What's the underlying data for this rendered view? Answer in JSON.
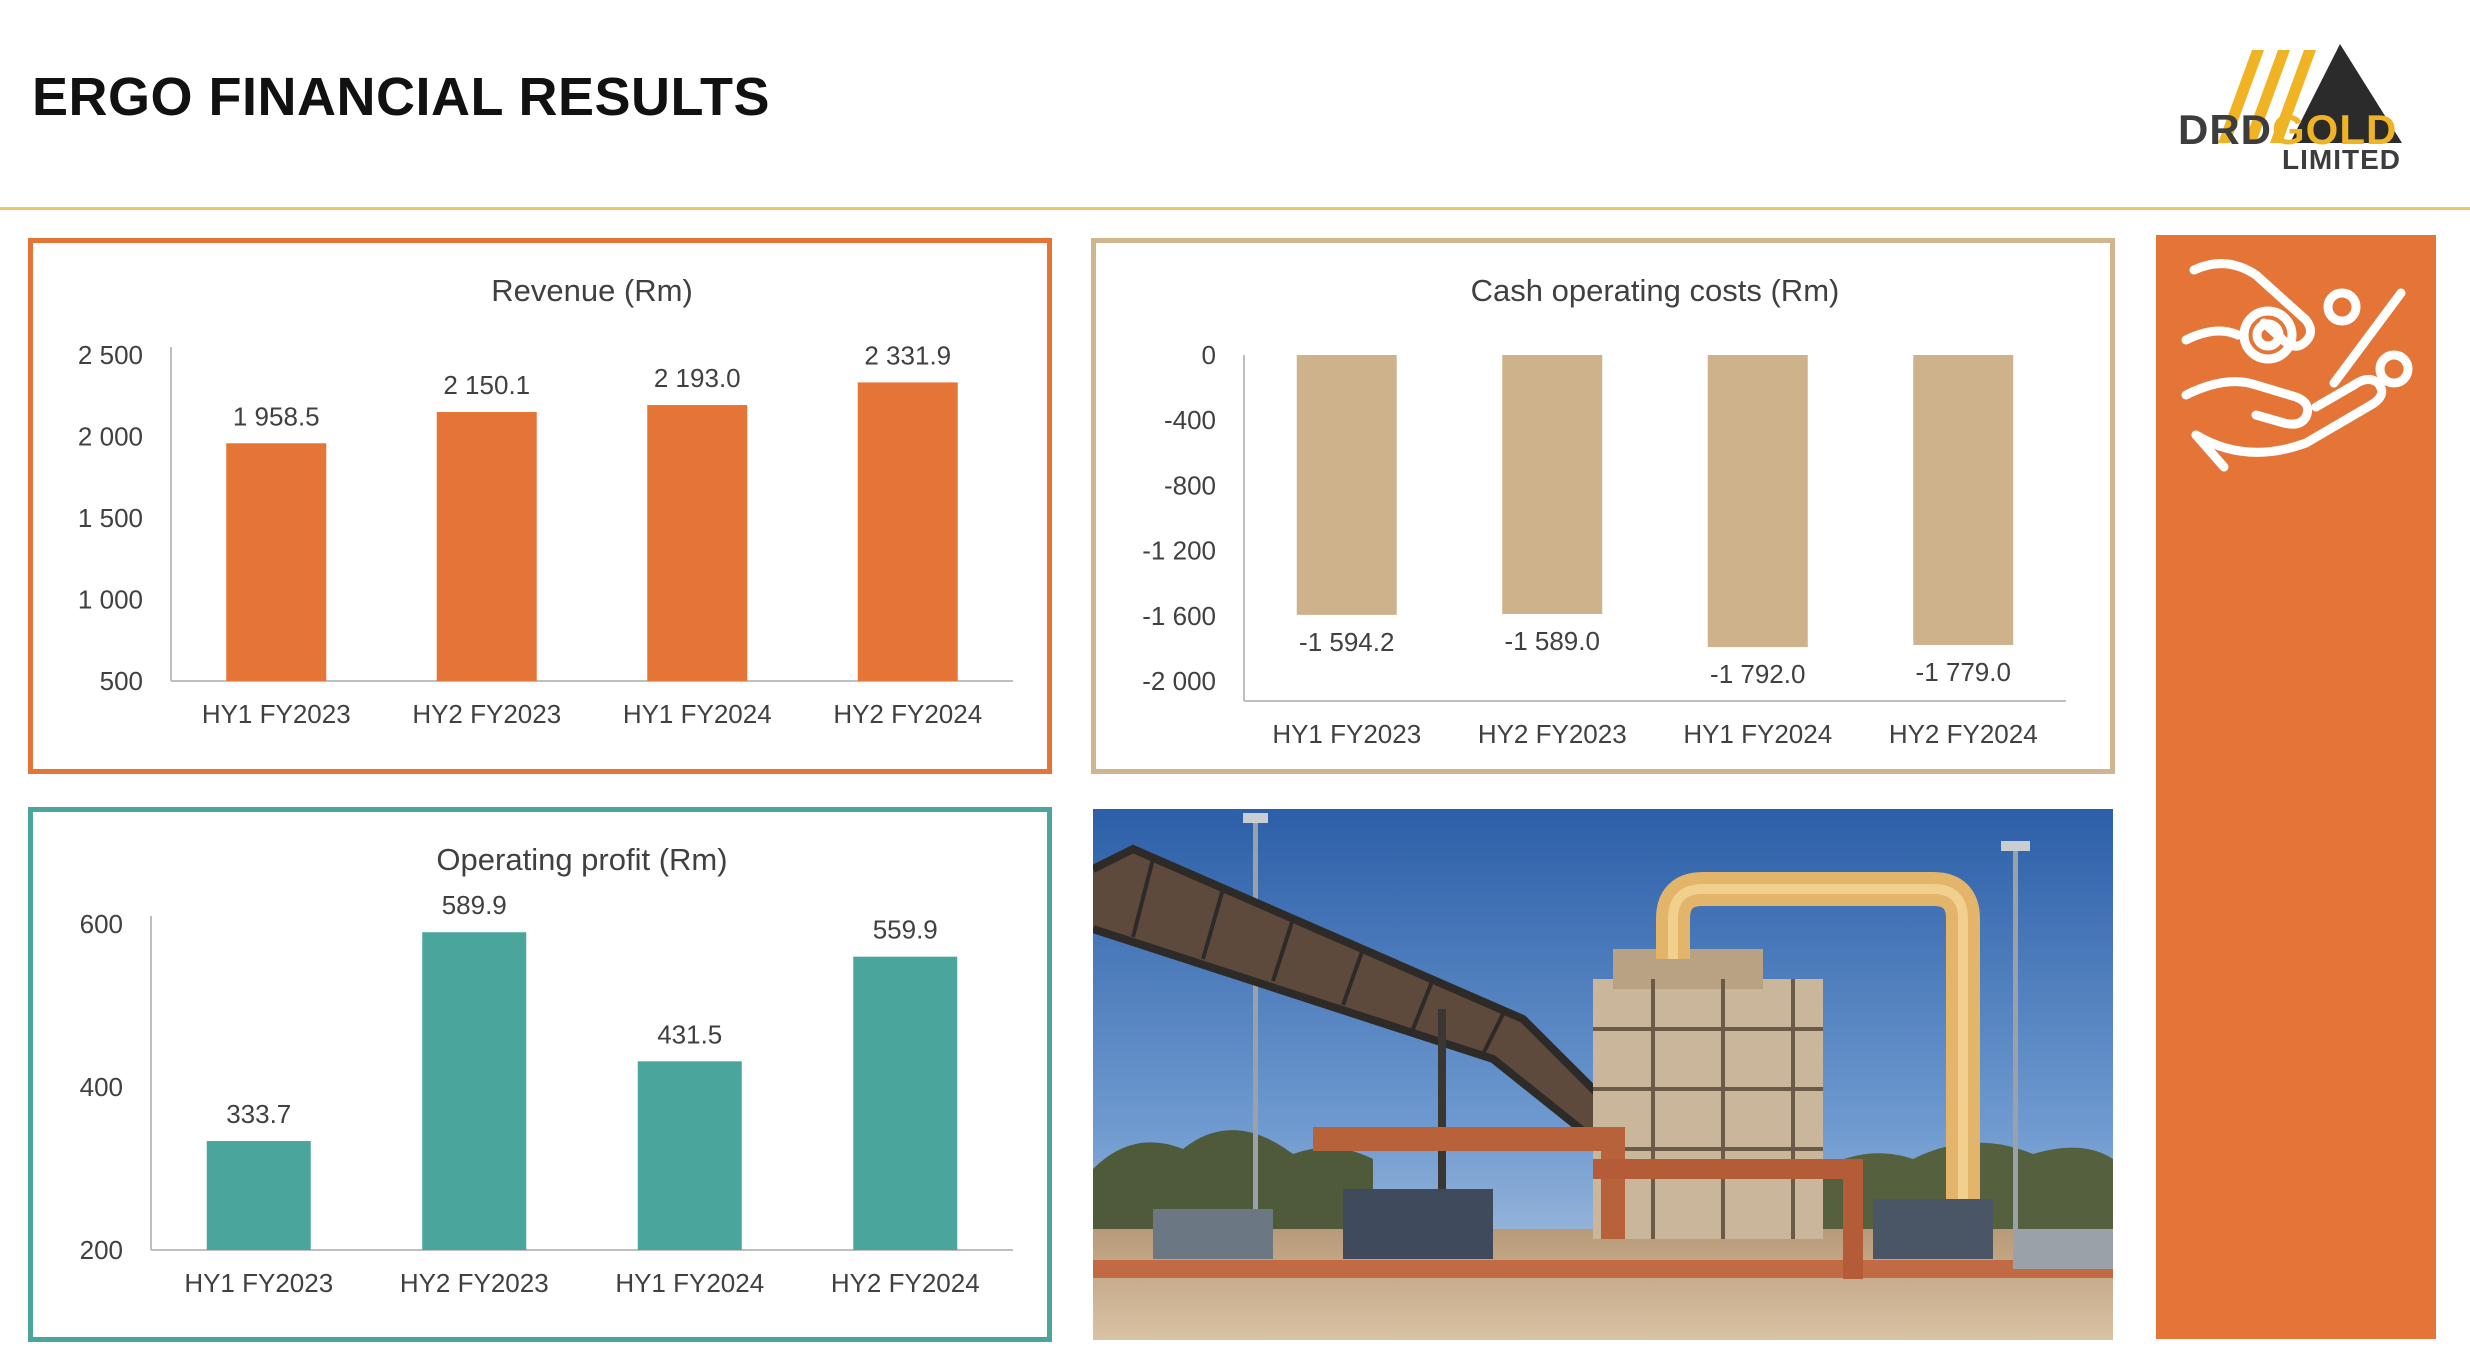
{
  "header": {
    "title": "ERGO FINANCIAL RESULTS",
    "logo_text_dark": "DRD",
    "logo_text_gold": "GOLD",
    "logo_sub": "LIMITED"
  },
  "colors": {
    "revenue": "#e57536",
    "costs": "#cdb28c",
    "profit": "#4aa59c",
    "sidebar": "#e57536",
    "header_rule": "#e8c96a"
  },
  "icons": {
    "sidebar": "hand-coin-percent-icon"
  },
  "chart_data": [
    {
      "id": "revenue",
      "type": "bar",
      "title": "Revenue (Rm)",
      "categories": [
        "HY1 FY2023",
        "HY2 FY2023",
        "HY1 FY2024",
        "HY2 FY2024"
      ],
      "values": [
        1958.5,
        2150.1,
        2193.0,
        2331.9
      ],
      "value_labels": [
        "1 958.5",
        "2 150.1",
        "2 193.0",
        "2 331.9"
      ],
      "ylim": [
        500,
        2500
      ],
      "yticks": [
        500,
        1000,
        1500,
        2000,
        2500
      ],
      "ytick_labels": [
        "500",
        "1 000",
        "1 500",
        "2 000",
        "2 500"
      ],
      "grid": false,
      "legend": "none"
    },
    {
      "id": "costs",
      "type": "bar",
      "title": "Cash operating costs (Rm)",
      "categories": [
        "HY1 FY2023",
        "HY2 FY2023",
        "HY1 FY2024",
        "HY2 FY2024"
      ],
      "values": [
        -1594.2,
        -1589.0,
        -1792.0,
        -1779.0
      ],
      "value_labels": [
        "-1 594.2",
        "-1 589.0",
        "-1 792.0",
        "-1 779.0"
      ],
      "ylim": [
        -2000,
        0
      ],
      "yticks": [
        0,
        -400,
        -800,
        -1200,
        -1600,
        -2000
      ],
      "ytick_labels": [
        "0",
        "-400",
        "-800",
        "-1 200",
        "-1 600",
        "-2 000"
      ],
      "grid": false,
      "legend": "none"
    },
    {
      "id": "profit",
      "type": "bar",
      "title": "Operating profit (Rm)",
      "categories": [
        "HY1 FY2023",
        "HY2 FY2023",
        "HY1 FY2024",
        "HY2 FY2024"
      ],
      "values": [
        333.7,
        589.9,
        431.5,
        559.9
      ],
      "value_labels": [
        "333.7",
        "589.9",
        "431.5",
        "559.9"
      ],
      "ylim": [
        200,
        600
      ],
      "yticks": [
        200,
        400,
        600
      ],
      "ytick_labels": [
        "200",
        "400",
        "600"
      ],
      "grid": false,
      "legend": "none"
    }
  ]
}
